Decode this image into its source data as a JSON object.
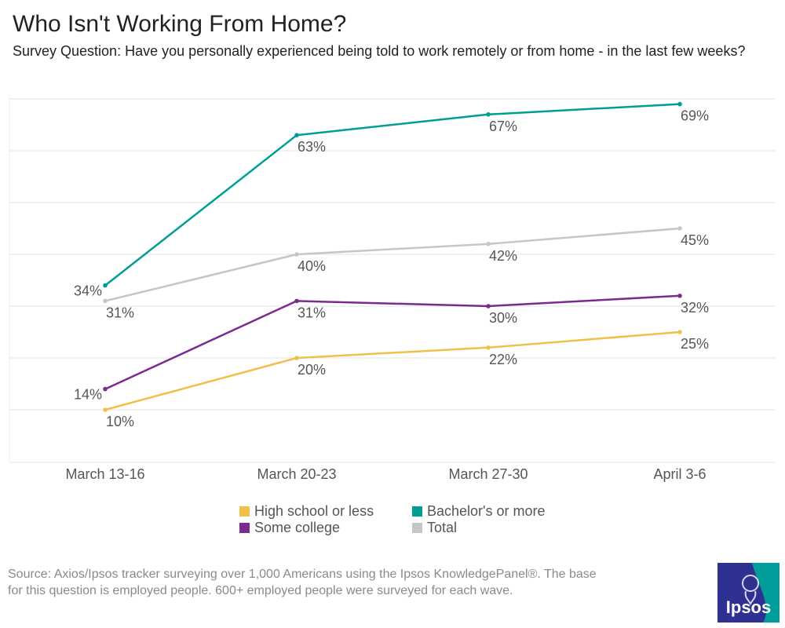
{
  "title": "Who Isn't Working From Home?",
  "subtitle": "Survey Question: Have you personally experienced being told to work remotely or from home -  in the last few weeks?",
  "source": "Source: Axios/Ipsos tracker surveying over 1,000  Americans using the Ipsos KnowledgePanel®. The base for this question is employed people. 600+ employed people were surveyed for each wave.",
  "logo": {
    "text": "Ipsos",
    "colors": [
      "#2e3192",
      "#009d9a"
    ]
  },
  "chart_data": {
    "type": "line",
    "title": "Who Isn't Working From Home?",
    "categories": [
      "March 13-16",
      "March 20-23",
      "March 27-30",
      "April 3-6"
    ],
    "ylim": [
      0,
      70
    ],
    "grid": true,
    "legend_position": "bottom",
    "value_suffix": "%",
    "series": [
      {
        "name": "High school or less",
        "color": "#f1c04b",
        "values": [
          10,
          20,
          22,
          25
        ],
        "label_side": [
          "below",
          "below",
          "below",
          "below"
        ]
      },
      {
        "name": "Bachelor's or more",
        "color": "#009d93",
        "values": [
          34,
          63,
          67,
          69
        ],
        "label_side": [
          "left",
          "below",
          "below",
          "below"
        ]
      },
      {
        "name": "Some college",
        "color": "#7b2a8f",
        "values": [
          14,
          31,
          30,
          32
        ],
        "label_side": [
          "left",
          "below",
          "below",
          "below"
        ]
      },
      {
        "name": "Total",
        "color": "#c6c6c8",
        "values": [
          31,
          40,
          42,
          45
        ],
        "label_side": [
          "below",
          "below",
          "below",
          "below"
        ]
      }
    ]
  }
}
